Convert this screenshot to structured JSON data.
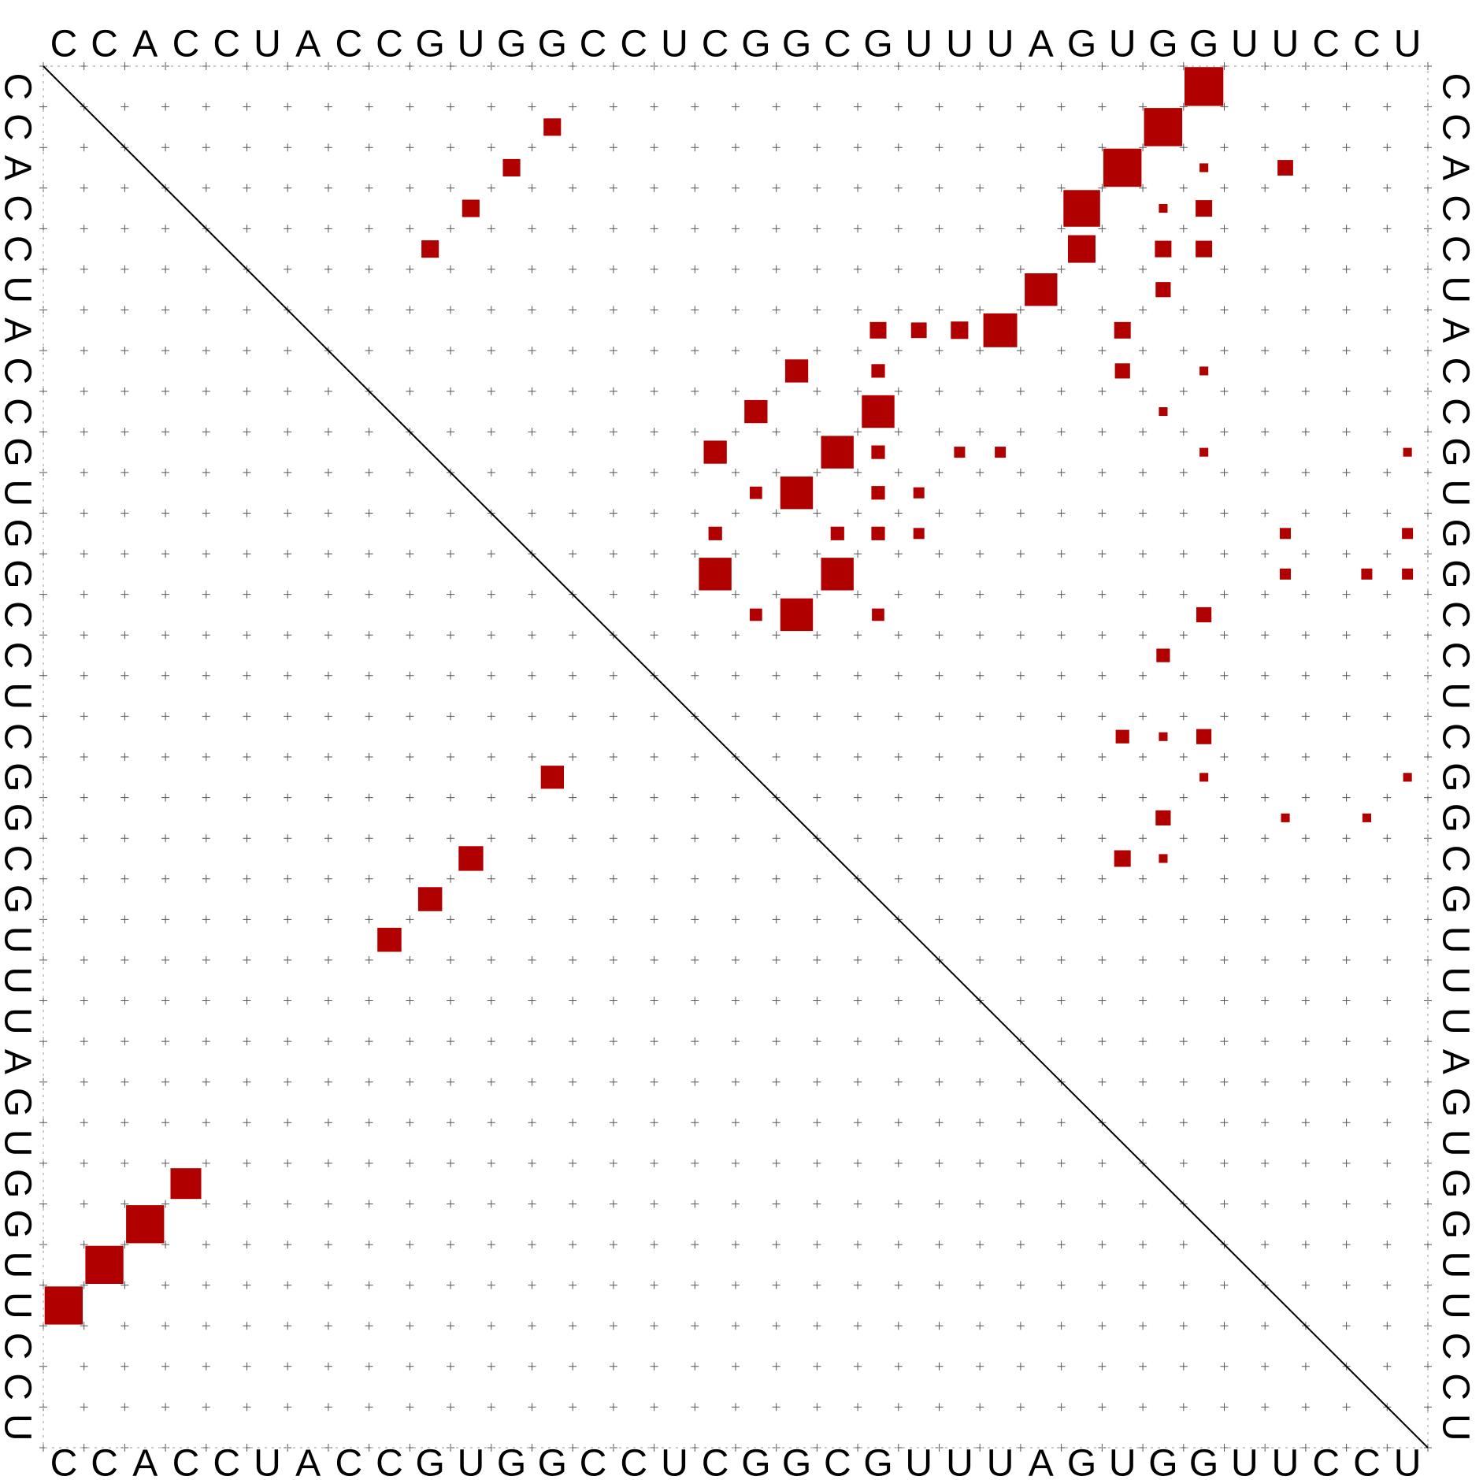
{
  "sequence": [
    "C",
    "C",
    "A",
    "C",
    "C",
    "U",
    "A",
    "C",
    "C",
    "G",
    "U",
    "G",
    "G",
    "C",
    "C",
    "U",
    "C",
    "G",
    "G",
    "C",
    "G",
    "U",
    "U",
    "U",
    "A",
    "G",
    "U",
    "G",
    "G",
    "U",
    "U",
    "C",
    "C",
    "U"
  ],
  "colors": {
    "pair": "#b00000",
    "diagonal": "#000000",
    "grid": "#555555",
    "frame": "#999999",
    "background": "#ffffff"
  },
  "chart_data": {
    "type": "heatmap",
    "upper_triangle": [
      [
        0,
        28,
        0.99
      ],
      [
        1,
        27,
        0.96
      ],
      [
        2,
        26,
        0.96
      ],
      [
        3,
        25,
        0.88
      ],
      [
        4,
        25,
        0.5
      ],
      [
        5,
        24,
        0.7
      ],
      [
        6,
        23,
        0.75
      ],
      [
        1,
        12,
        0.2
      ],
      [
        2,
        11,
        0.2
      ],
      [
        3,
        10,
        0.2
      ],
      [
        4,
        9,
        0.2
      ],
      [
        2,
        30,
        0.16
      ],
      [
        3,
        28,
        0.18
      ],
      [
        4,
        28,
        0.18
      ],
      [
        4,
        27,
        0.18
      ],
      [
        5,
        27,
        0.15
      ],
      [
        6,
        26,
        0.18
      ],
      [
        7,
        26,
        0.15
      ],
      [
        6,
        20,
        0.18
      ],
      [
        6,
        21,
        0.16
      ],
      [
        6,
        22,
        0.2
      ],
      [
        7,
        18,
        0.35
      ],
      [
        8,
        17,
        0.35
      ],
      [
        9,
        16,
        0.35
      ],
      [
        8,
        20,
        0.7
      ],
      [
        9,
        19,
        0.7
      ],
      [
        10,
        18,
        0.7
      ],
      [
        12,
        19,
        0.7
      ],
      [
        12,
        16,
        0.7
      ],
      [
        13,
        18,
        0.7
      ],
      [
        7,
        20,
        0.12
      ],
      [
        9,
        20,
        0.12
      ],
      [
        10,
        20,
        0.12
      ],
      [
        10,
        17,
        0.1
      ],
      [
        11,
        16,
        0.12
      ],
      [
        11,
        19,
        0.12
      ],
      [
        11,
        20,
        0.12
      ],
      [
        13,
        20,
        0.1
      ],
      [
        13,
        17,
        0.1
      ],
      [
        13,
        28,
        0.15
      ],
      [
        14,
        27,
        0.12
      ],
      [
        16,
        26,
        0.12
      ],
      [
        16,
        28,
        0.15
      ],
      [
        18,
        27,
        0.15
      ],
      [
        19,
        26,
        0.18
      ],
      [
        10,
        21,
        0.08
      ],
      [
        11,
        21,
        0.08
      ],
      [
        9,
        22,
        0.08
      ],
      [
        9,
        23,
        0.08
      ],
      [
        9,
        28,
        0.05
      ],
      [
        9,
        33,
        0.05
      ],
      [
        11,
        30,
        0.08
      ],
      [
        11,
        33,
        0.08
      ],
      [
        12,
        30,
        0.08
      ],
      [
        12,
        32,
        0.08
      ],
      [
        12,
        33,
        0.08
      ],
      [
        17,
        33,
        0.05
      ],
      [
        18,
        30,
        0.05
      ],
      [
        18,
        32,
        0.05
      ],
      [
        2,
        28,
        0.05
      ],
      [
        3,
        27,
        0.05
      ],
      [
        5,
        27,
        0.05
      ],
      [
        7,
        28,
        0.05
      ],
      [
        8,
        27,
        0.05
      ],
      [
        16,
        27,
        0.05
      ],
      [
        17,
        28,
        0.05
      ],
      [
        19,
        27,
        0.05
      ]
    ],
    "lower_triangle": [
      [
        17,
        12,
        0.35
      ],
      [
        19,
        10,
        0.4
      ],
      [
        20,
        9,
        0.38
      ],
      [
        21,
        8,
        0.38
      ],
      [
        27,
        3,
        0.62
      ],
      [
        28,
        2,
        0.95
      ],
      [
        29,
        1,
        0.95
      ],
      [
        30,
        0,
        0.95
      ]
    ]
  }
}
